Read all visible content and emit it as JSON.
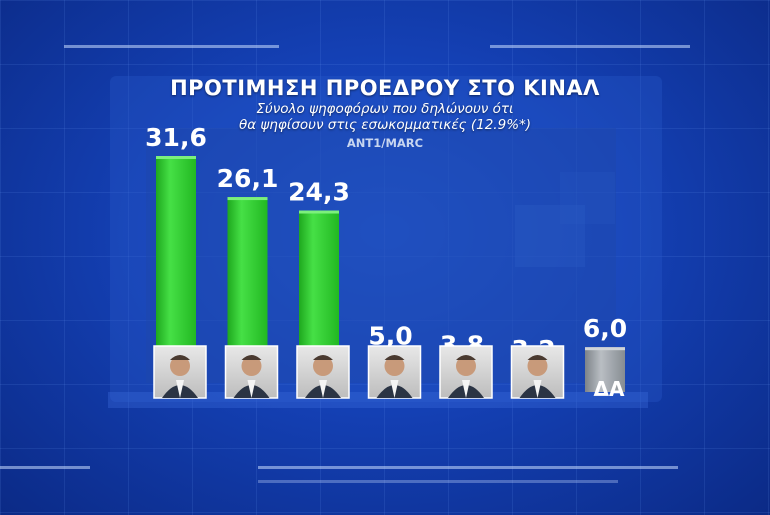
{
  "chart_data": {
    "type": "bar",
    "title": "ΠΡΟΤΙΜΗΣΗ ΠΡΟΕΔΡΟΥ ΣΤΟ ΚΙΝΑΛ",
    "subtitle_line1": "Σύνολο ψηφοφόρων που δηλώνουν ότι",
    "subtitle_line2": "θα ψηφίσουν στις εσωκομματικές (12.9%*)",
    "source": "ANT1/MARC",
    "ylim": [
      0,
      31.6
    ],
    "series": [
      {
        "values": [
          31.6,
          26.1,
          24.3,
          5.0,
          3.8,
          3.2,
          6.0
        ],
        "value_labels": [
          "31,6",
          "26,1",
          "24,3",
          "5,0",
          "3,8",
          "3,2",
          "6,0"
        ],
        "category_labels": [
          "",
          "",
          "",
          "",
          "",
          "",
          "ΔΑ"
        ],
        "kinds": [
          "photo",
          "photo",
          "photo",
          "photo",
          "photo",
          "photo",
          "text"
        ]
      }
    ],
    "colors": {
      "bar": "#34d634",
      "bar_dark": "#1fae1f",
      "da_bar": "#9aa0a6",
      "value_text": "#ffffff"
    },
    "grid": false,
    "legend": "none"
  }
}
